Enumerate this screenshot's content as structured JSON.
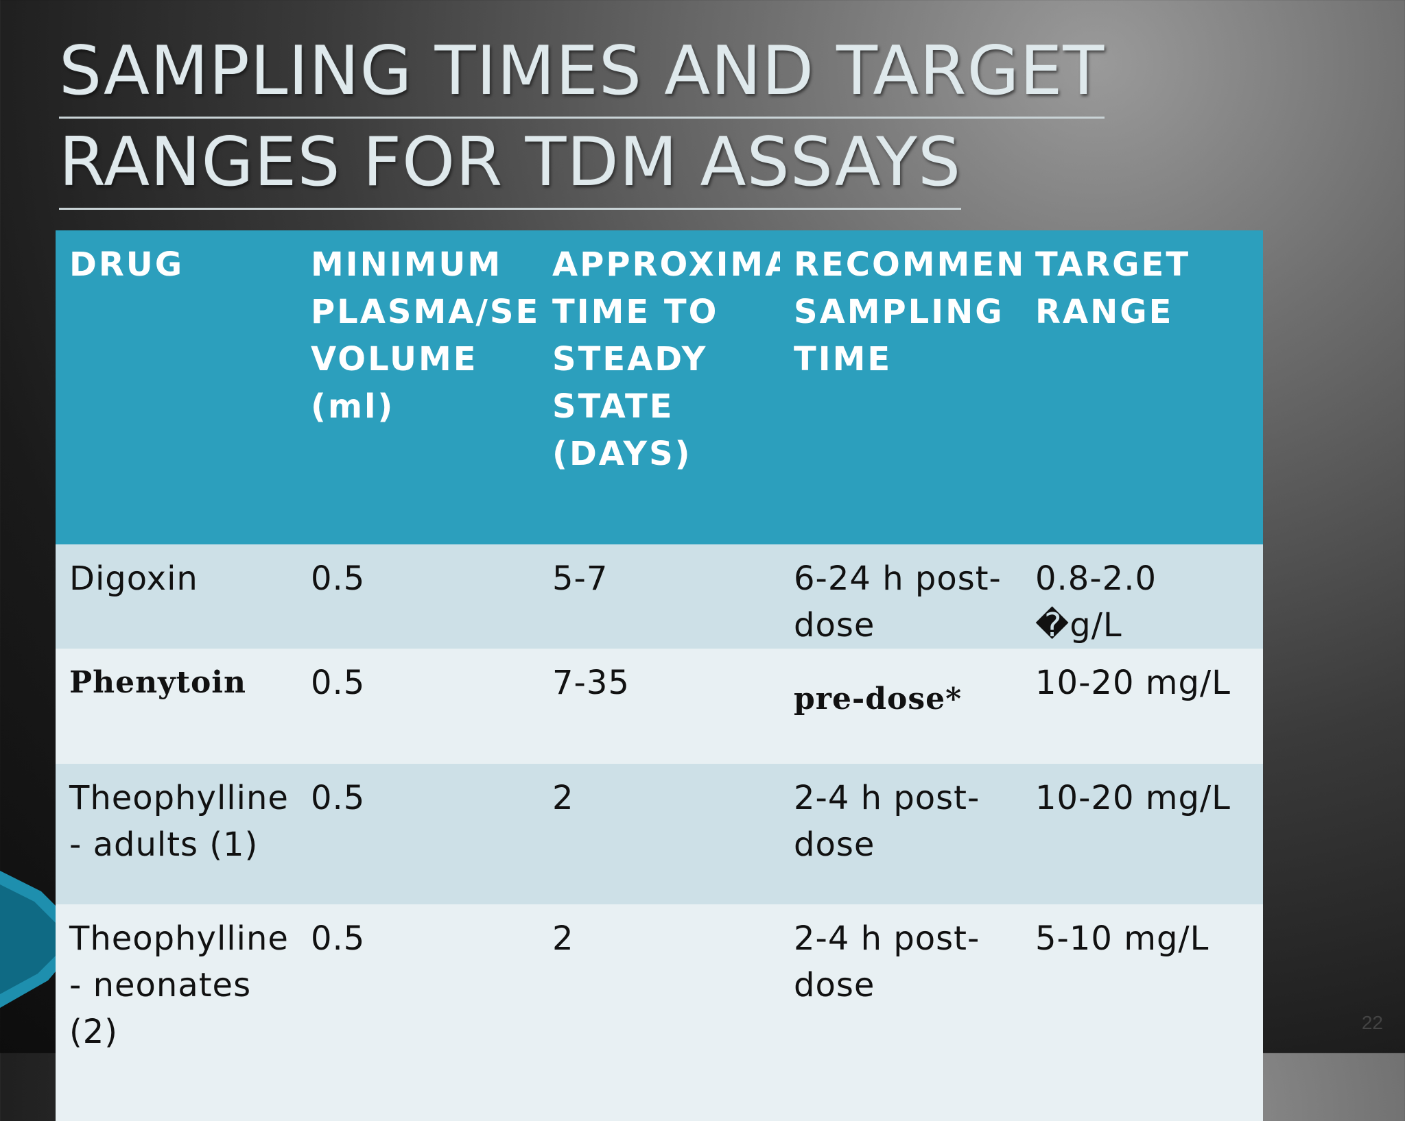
{
  "slide": {
    "title_line1": "SAMPLING TIMES AND TARGET",
    "title_line2": "RANGES FOR TDM ASSAYS",
    "page_number": "22"
  },
  "table": {
    "headers": [
      "DRUG",
      "MINIMUM PLASMA/SERUM VOLUME (ml)",
      "APPROXIMATE TIME TO STEADY STATE (DAYS)",
      "RECOMMENDED SAMPLING TIME",
      "TARGET RANGE"
    ],
    "rows": [
      [
        "Digoxin",
        "0.5",
        "5-7",
        "6-24 h post-dose",
        "0.8-2.0 �g/L"
      ],
      [
        "Phenytoin",
        "0.5",
        "7-35",
        "pre-dose*",
        "10-20 mg/L"
      ],
      [
        "Theophylline - adults (1)",
        "0.5",
        "2",
        "2-4 h post-dose",
        "10-20 mg/L"
      ],
      [
        "Theophylline - neonates (2)",
        "0.5",
        "2",
        "2-4 h post-dose",
        "5-10 mg/L"
      ]
    ]
  },
  "colors": {
    "header_bg": "#2c9fbd",
    "row_dark": "#cde0e7",
    "row_light": "#e8f0f3",
    "accent_wave": "#1e8fae"
  }
}
